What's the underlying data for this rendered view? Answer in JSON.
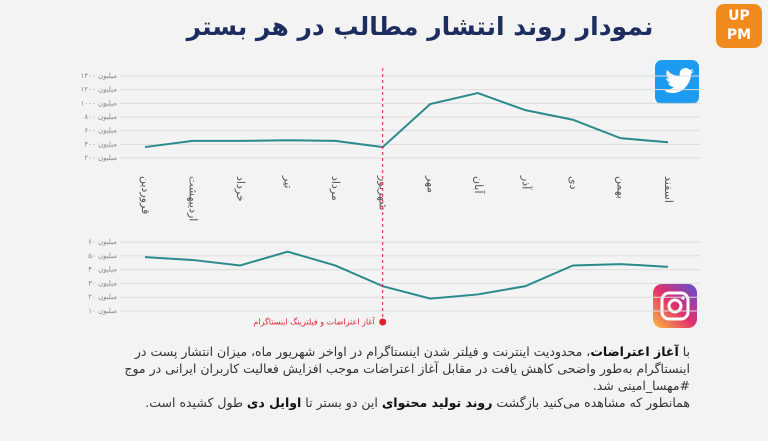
{
  "header": {
    "title": "نمودار روند انتشار مطالب در هر بستر",
    "logo_top": "UP",
    "logo_bottom": "PM"
  },
  "annotation": "آغاز اعتراضات و فیلترینگ اینستاگرام",
  "paragraphs": [
    [
      {
        "text": "با ",
        "bold": false
      },
      {
        "text": "آغاز اعتراضات",
        "bold": true
      },
      {
        "text": "، محدودیت اینترنت و فیلتر شدن اینستاگرام در اواخر شهریور ماه، میزان انتشار پست در اینستاگرام به‌طور واضحی کاهش یافت در مقابل آغاز اعتراضات موجب افزایش فعالیت کاربران ایرانی در موج #مهسا_امینی شد.",
        "bold": false
      }
    ],
    [
      {
        "text": "همانطور که مشاهده می‌کنید بازگشت ",
        "bold": false
      },
      {
        "text": "روند تولید محتوای",
        "bold": true
      },
      {
        "text": " این دو بستر تا ",
        "bold": false
      },
      {
        "text": "اوایل دی",
        "bold": true
      },
      {
        "text": " طول کشیده است.",
        "bold": false
      }
    ]
  ],
  "chart_data": [
    {
      "type": "line",
      "color": "#2b8a8c",
      "grid": true,
      "categories": [
        "فروردین",
        "اردیبهشت",
        "خرداد",
        "تیر",
        "مرداد",
        "شهریور",
        "مهر",
        "آبان",
        "آذر",
        "دی",
        "بهمن",
        "اسفند"
      ],
      "values": [
        360,
        450,
        450,
        460,
        450,
        360,
        990,
        1150,
        900,
        760,
        490,
        430
      ],
      "ylim": [
        200,
        1400
      ],
      "yticks": [
        {
          "value": 200,
          "label": "۲۰۰ میلیون"
        },
        {
          "value": 400,
          "label": "۴۰۰ میلیون"
        },
        {
          "value": 600,
          "label": "۶۰۰ میلیون"
        },
        {
          "value": 800,
          "label": "۸۰۰ میلیون"
        },
        {
          "value": 1000,
          "label": "۱۰۰۰ میلیون"
        },
        {
          "value": 1200,
          "label": "۱۲۰۰ میلیون"
        },
        {
          "value": 1400,
          "label": "۱۴۰۰ میلیون"
        }
      ]
    },
    {
      "type": "line",
      "color": "#2b8a8c",
      "grid": true,
      "values": [
        49,
        47,
        43,
        53,
        43,
        28,
        19,
        22,
        28,
        43,
        44,
        42
      ],
      "ylim": [
        10,
        60
      ],
      "yticks": [
        {
          "value": 10,
          "label": "۱۰ میلیون"
        },
        {
          "value": 20,
          "label": "۲۰ میلیون"
        },
        {
          "value": 30,
          "label": "۳۰ میلیون"
        },
        {
          "value": 40,
          "label": "۴۰ میلیون"
        },
        {
          "value": 50,
          "label": "۵۰ میلیون"
        },
        {
          "value": 60,
          "label": "۶۰ میلیون"
        }
      ]
    }
  ]
}
